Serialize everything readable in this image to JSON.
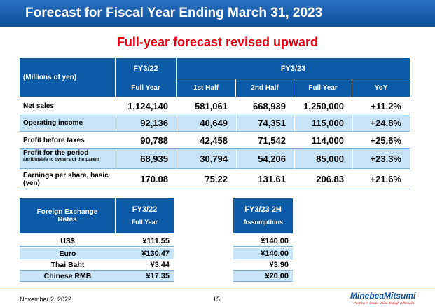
{
  "header": {
    "title": "Forecast for Fiscal Year Ending March 31, 2023"
  },
  "subtitle": "Full-year forecast revised upward",
  "forecast_table": {
    "unit": "(Millions of yen)",
    "group_headers": [
      "FY3/22",
      "FY3/23"
    ],
    "columns": [
      "Full Year",
      "1st Half",
      "2nd Half",
      "Full Year",
      "YoY"
    ],
    "rows": [
      {
        "label": "Net sales",
        "cells": [
          "1,124,140",
          "581,061",
          "668,939",
          "1,250,000",
          "+11.2%"
        ]
      },
      {
        "label": "Operating income",
        "cells": [
          "92,136",
          "40,649",
          "74,351",
          "115,000",
          "+24.8%"
        ]
      },
      {
        "label": "Profit before taxes",
        "cells": [
          "90,788",
          "42,458",
          "71,542",
          "114,000",
          "+25.6%"
        ]
      },
      {
        "label": "Profit for the period",
        "note": "attributable to owners of the parent",
        "cells": [
          "68,935",
          "30,794",
          "54,206",
          "85,000",
          "+23.3%"
        ]
      },
      {
        "label": "Earnings per share, basic (yen)",
        "cells": [
          "170.08",
          "75.22",
          "131.61",
          "206.83",
          "+21.6%"
        ]
      }
    ]
  },
  "fx_table": {
    "header": "Foreign Exchange Rates",
    "column_title": "FY3/22",
    "column_subtitle": "Full Year",
    "rows": [
      {
        "label": "US$",
        "value": "¥111.55"
      },
      {
        "label": "Euro",
        "value": "¥130.47"
      },
      {
        "label": "Thai Baht",
        "value": "¥3.44"
      },
      {
        "label": "Chinese RMB",
        "value": "¥17.35"
      }
    ]
  },
  "assumptions_table": {
    "title": "FY3/23 2H",
    "subtitle": "Assumptions",
    "values": [
      "¥140.00",
      "¥140.00",
      "¥3.90",
      "¥20.00"
    ]
  },
  "footer": {
    "date": "November 2, 2022",
    "page": "15",
    "logo": "MinebeaMitsumi",
    "tagline": "Passion to Create Value through Difference"
  }
}
